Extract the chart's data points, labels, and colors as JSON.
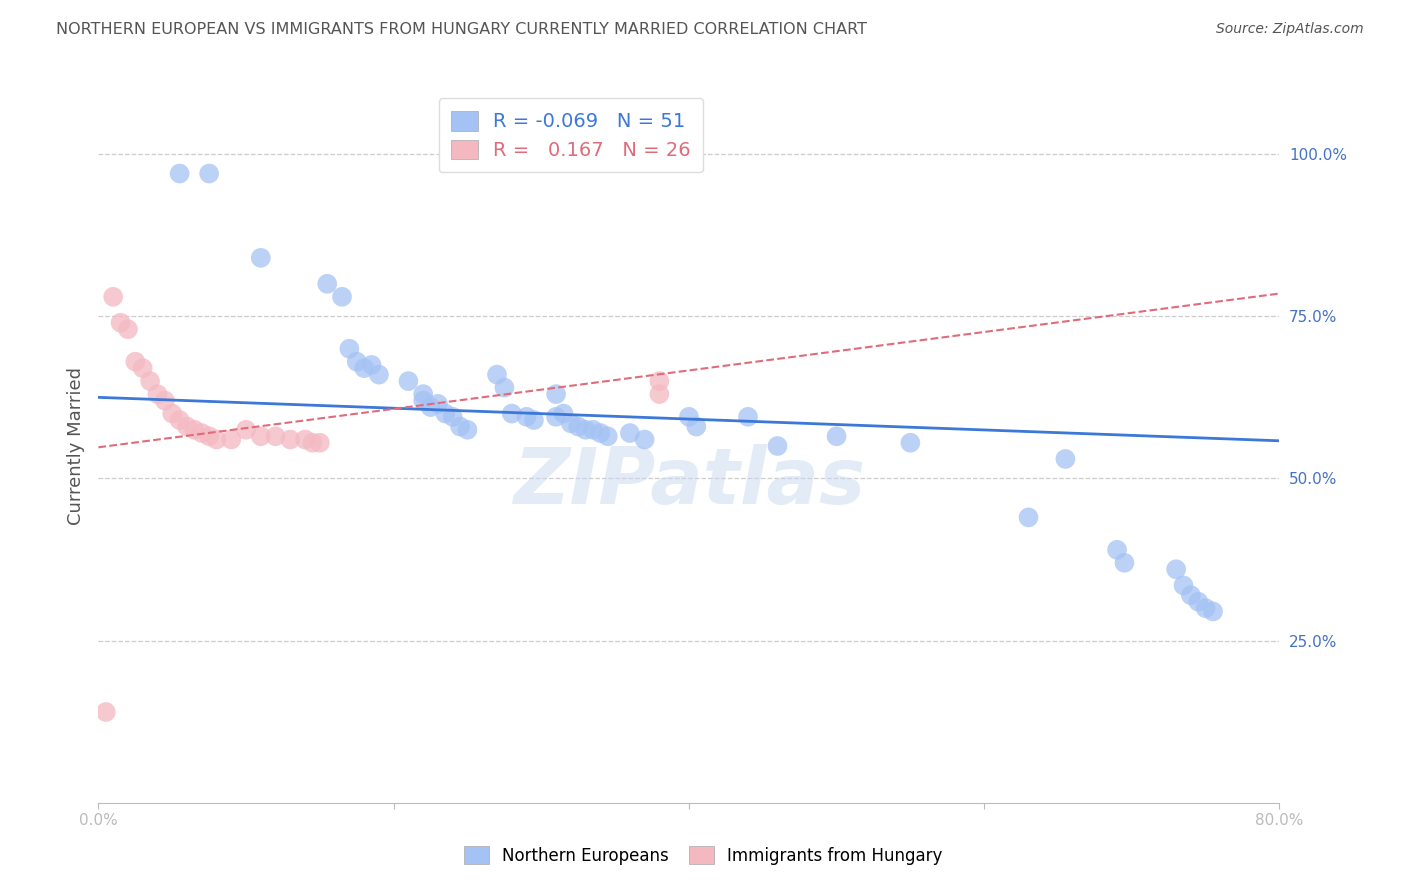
{
  "title": "NORTHERN EUROPEAN VS IMMIGRANTS FROM HUNGARY CURRENTLY MARRIED CORRELATION CHART",
  "source": "Source: ZipAtlas.com",
  "ylabel": "Currently Married",
  "x_min": 0.0,
  "x_max": 0.8,
  "y_min": 0.0,
  "y_max": 1.1,
  "x_ticks": [
    0.0,
    0.2,
    0.4,
    0.6,
    0.8
  ],
  "x_tick_labels": [
    "0.0%",
    "",
    "",
    "",
    "80.0%"
  ],
  "y_ticks": [
    0.25,
    0.5,
    0.75,
    1.0
  ],
  "y_tick_labels": [
    "25.0%",
    "50.0%",
    "75.0%",
    "100.0%"
  ],
  "watermark": "ZIPatlas",
  "blue_R": "-0.069",
  "blue_N": "51",
  "pink_R": "0.167",
  "pink_N": "26",
  "blue_scatter_x": [
    0.055,
    0.075,
    0.11,
    0.155,
    0.165,
    0.17,
    0.175,
    0.18,
    0.185,
    0.19,
    0.21,
    0.22,
    0.22,
    0.225,
    0.23,
    0.235,
    0.24,
    0.245,
    0.25,
    0.27,
    0.275,
    0.28,
    0.29,
    0.295,
    0.31,
    0.31,
    0.315,
    0.32,
    0.325,
    0.33,
    0.335,
    0.34,
    0.345,
    0.36,
    0.37,
    0.4,
    0.405,
    0.44,
    0.46,
    0.5,
    0.55,
    0.63,
    0.655,
    0.69,
    0.695,
    0.73,
    0.735,
    0.74,
    0.745,
    0.75,
    0.755
  ],
  "blue_scatter_y": [
    0.97,
    0.97,
    0.84,
    0.8,
    0.78,
    0.7,
    0.68,
    0.67,
    0.675,
    0.66,
    0.65,
    0.63,
    0.62,
    0.61,
    0.615,
    0.6,
    0.595,
    0.58,
    0.575,
    0.66,
    0.64,
    0.6,
    0.595,
    0.59,
    0.63,
    0.595,
    0.6,
    0.585,
    0.58,
    0.575,
    0.575,
    0.57,
    0.565,
    0.57,
    0.56,
    0.595,
    0.58,
    0.595,
    0.55,
    0.565,
    0.555,
    0.44,
    0.53,
    0.39,
    0.37,
    0.36,
    0.335,
    0.32,
    0.31,
    0.3,
    0.295
  ],
  "pink_scatter_x": [
    0.005,
    0.01,
    0.015,
    0.02,
    0.025,
    0.03,
    0.035,
    0.04,
    0.045,
    0.05,
    0.055,
    0.06,
    0.065,
    0.07,
    0.075,
    0.08,
    0.09,
    0.1,
    0.11,
    0.12,
    0.13,
    0.14,
    0.145,
    0.15,
    0.38,
    0.38
  ],
  "pink_scatter_y": [
    0.14,
    0.78,
    0.74,
    0.73,
    0.68,
    0.67,
    0.65,
    0.63,
    0.62,
    0.6,
    0.59,
    0.58,
    0.575,
    0.57,
    0.565,
    0.56,
    0.56,
    0.575,
    0.565,
    0.565,
    0.56,
    0.56,
    0.555,
    0.555,
    0.65,
    0.63
  ],
  "blue_line_x0": 0.0,
  "blue_line_x1": 0.8,
  "blue_line_y0": 0.625,
  "blue_line_y1": 0.558,
  "pink_line_x0": 0.0,
  "pink_line_x1": 0.8,
  "pink_line_y0": 0.548,
  "pink_line_y1": 0.785,
  "blue_color": "#a4c2f4",
  "pink_color": "#f4b8c1",
  "blue_line_color": "#3c78d8",
  "pink_line_color": "#e06b7a",
  "grid_color": "#cccccc",
  "title_color": "#555555",
  "axis_tick_color": "#4472c4",
  "background_color": "#ffffff"
}
